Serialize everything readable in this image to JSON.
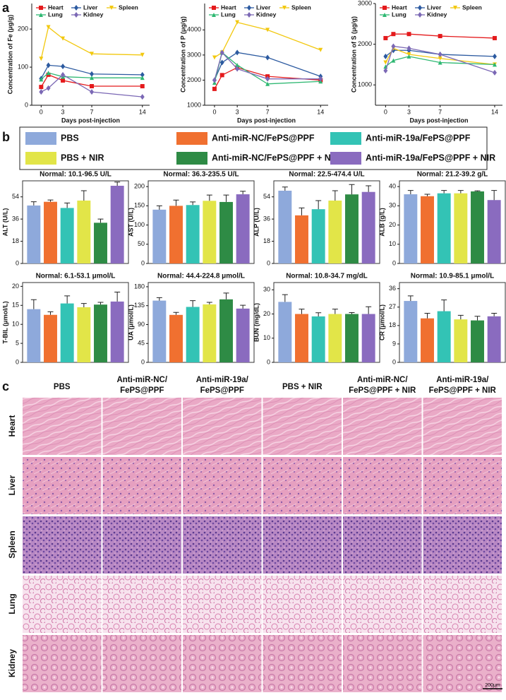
{
  "panel_labels": [
    "a",
    "b",
    "c"
  ],
  "legend": {
    "items": [
      {
        "name": "PBS",
        "color": "#8ea9db"
      },
      {
        "name": "Anti-miR-NC/FePS@PPF",
        "color": "#f07030"
      },
      {
        "name": "Anti-miR-19a/FePS@PPF",
        "color": "#33c3b5"
      },
      {
        "name": "PBS + NIR",
        "color": "#e2e548"
      },
      {
        "name": "Anti-miR-NC/FePS@PPF + NIR",
        "color": "#2e8b45"
      },
      {
        "name": "Anti-miR-19a/FePS@PPF + NIR",
        "color": "#8a6bbf"
      }
    ]
  },
  "chart_data": [
    {
      "type": "line",
      "xlabel": "Days post-injection",
      "ylabel": "Concentration of Fe (μg/g)",
      "x": [
        0,
        1,
        3,
        7,
        14
      ],
      "xlim": [
        -1.3,
        15
      ],
      "xticks": [
        0,
        3,
        7,
        14
      ],
      "ylim": [
        0,
        267
      ],
      "yticks": [
        0,
        100,
        200
      ],
      "series": [
        {
          "name": "Heart",
          "color": "#e41a1c",
          "values": [
            48,
            80,
            65,
            50,
            50
          ]
        },
        {
          "name": "Liver",
          "color": "#2c5aa0",
          "values": [
            70,
            105,
            102,
            82,
            80
          ]
        },
        {
          "name": "Spleen",
          "color": "#f2c80f",
          "values": [
            122,
            205,
            175,
            135,
            132
          ]
        },
        {
          "name": "Lung",
          "color": "#2eb872",
          "values": [
            68,
            85,
            75,
            72,
            72
          ]
        },
        {
          "name": "Kidney",
          "color": "#7b68b5",
          "values": [
            35,
            45,
            80,
            35,
            22
          ]
        }
      ]
    },
    {
      "type": "line",
      "xlabel": "Days post-injection",
      "ylabel": "Concentration of P (μg/g)",
      "x": [
        0,
        1,
        3,
        7,
        14
      ],
      "xlim": [
        -1.3,
        15
      ],
      "xticks": [
        0,
        3,
        7,
        14
      ],
      "ylim": [
        1000,
        5050
      ],
      "yticks": [
        1000,
        2000,
        3000,
        4000
      ],
      "series": [
        {
          "name": "Heart",
          "color": "#e41a1c",
          "values": [
            1650,
            2200,
            2500,
            2150,
            2000
          ]
        },
        {
          "name": "Liver",
          "color": "#2c5aa0",
          "values": [
            2000,
            2700,
            3100,
            2900,
            2150
          ]
        },
        {
          "name": "Spleen",
          "color": "#f2c80f",
          "values": [
            2900,
            3100,
            4300,
            4000,
            3200
          ]
        },
        {
          "name": "Lung",
          "color": "#2eb872",
          "values": [
            1900,
            3100,
            2600,
            1850,
            1950
          ]
        },
        {
          "name": "Kidney",
          "color": "#7b68b5",
          "values": [
            2000,
            3100,
            2450,
            2050,
            2050
          ]
        }
      ]
    },
    {
      "type": "line",
      "xlabel": "Days post-injection",
      "ylabel": "Concentration of S (μg/g)",
      "x": [
        0,
        1,
        3,
        7,
        14
      ],
      "xlim": [
        -1.3,
        15
      ],
      "xticks": [
        0,
        3,
        7,
        14
      ],
      "ylim": [
        500,
        3000
      ],
      "yticks": [
        1000,
        2000,
        3000
      ],
      "series": [
        {
          "name": "Heart",
          "color": "#e41a1c",
          "values": [
            2150,
            2250,
            2250,
            2200,
            2150
          ]
        },
        {
          "name": "Liver",
          "color": "#2c5aa0",
          "values": [
            1700,
            1850,
            1850,
            1750,
            1700
          ]
        },
        {
          "name": "Spleen",
          "color": "#f2c80f",
          "values": [
            1550,
            1900,
            1750,
            1650,
            1500
          ]
        },
        {
          "name": "Lung",
          "color": "#2eb872",
          "values": [
            1450,
            1600,
            1700,
            1550,
            1500
          ]
        },
        {
          "name": "Kidney",
          "color": "#7b68b5",
          "values": [
            1350,
            1950,
            1900,
            1750,
            1300
          ]
        }
      ]
    },
    {
      "type": "bar",
      "title": "Normal: 10.1-96.5 U/L",
      "ylabel": "ALT (U/L)",
      "ylim": [
        0,
        67
      ],
      "yticks": [
        0,
        18,
        36,
        54
      ],
      "values": [
        47,
        50,
        45,
        51,
        33,
        63
      ],
      "errors": [
        3,
        1.5,
        4,
        8,
        3,
        3
      ]
    },
    {
      "type": "bar",
      "title": "Normal: 36.3-235.5 U/L",
      "ylabel": "AST (U/L)",
      "ylim": [
        0,
        215
      ],
      "yticks": [
        0,
        50,
        100,
        150,
        200
      ],
      "values": [
        140,
        150,
        152,
        163,
        160,
        180
      ],
      "errors": [
        10,
        15,
        8,
        15,
        18,
        8
      ]
    },
    {
      "type": "bar",
      "title": "Normal: 22.5-474.4 U/L",
      "ylabel": "ALP (U/L)",
      "ylim": [
        0,
        67
      ],
      "yticks": [
        0,
        18,
        36,
        54
      ],
      "values": [
        59,
        39,
        44,
        51,
        56,
        58
      ],
      "errors": [
        3,
        6,
        7,
        8,
        8,
        5
      ]
    },
    {
      "type": "bar",
      "title": "Normal: 21.2-39.2 g/L",
      "ylabel": "ALB (g/L)",
      "ylim": [
        0,
        43
      ],
      "yticks": [
        0,
        10,
        20,
        30,
        40
      ],
      "values": [
        36,
        35,
        36.5,
        36.5,
        37.5,
        33
      ],
      "errors": [
        2,
        1,
        1.5,
        1.5,
        0.3,
        5
      ]
    },
    {
      "type": "bar",
      "title": "Normal: 6.1-53.1 μmol/L",
      "ylabel": "T-BIL (μmol/L)",
      "ylim": [
        0,
        21
      ],
      "yticks": [
        0,
        5,
        10,
        15,
        20
      ],
      "values": [
        14,
        12.5,
        15.5,
        14.5,
        15.2,
        16
      ],
      "errors": [
        2.5,
        0.8,
        2,
        1,
        0.6,
        2.5
      ]
    },
    {
      "type": "bar",
      "title": "Normal: 44.4-224.8 μmol/L",
      "ylabel": "UA (μmol/L)",
      "ylim": [
        0,
        190
      ],
      "yticks": [
        0,
        45,
        90,
        135,
        180
      ],
      "values": [
        147,
        113,
        132,
        138,
        150,
        128
      ],
      "errors": [
        7,
        6,
        15,
        5,
        15,
        8
      ]
    },
    {
      "type": "bar",
      "title": "Normal: 10.8-34.7 mg/dL",
      "ylabel": "BUN (mg/dL)",
      "ylim": [
        0,
        33
      ],
      "yticks": [
        0,
        10,
        20,
        30
      ],
      "values": [
        25,
        20,
        19,
        20,
        20,
        20
      ],
      "errors": [
        3,
        2,
        1.5,
        2,
        0.6,
        3
      ]
    },
    {
      "type": "bar",
      "title": "Normal: 10.9-85.1 μmol/L",
      "ylabel": "CR (μmol/L)",
      "ylim": [
        0,
        39
      ],
      "yticks": [
        0,
        9,
        18,
        27,
        36
      ],
      "values": [
        30,
        21.5,
        25,
        21,
        20.5,
        22.5
      ],
      "errors": [
        2.5,
        2.5,
        5.5,
        2,
        2,
        1.5
      ]
    }
  ],
  "histology": {
    "columns": [
      [
        "PBS"
      ],
      [
        "Anti-miR-NC/",
        "FePS@PPF"
      ],
      [
        "Anti-miR-19a/",
        "FePS@PPF"
      ],
      [
        "PBS + NIR"
      ],
      [
        "Anti-miR-NC/",
        "FePS@PPF + NIR"
      ],
      [
        "Anti-miR-19a/",
        "FePS@PPF + NIR"
      ]
    ],
    "rows": [
      "Heart",
      "Liver",
      "Spleen",
      "Lung",
      "Kidney"
    ],
    "scale_bar": "200μm"
  }
}
